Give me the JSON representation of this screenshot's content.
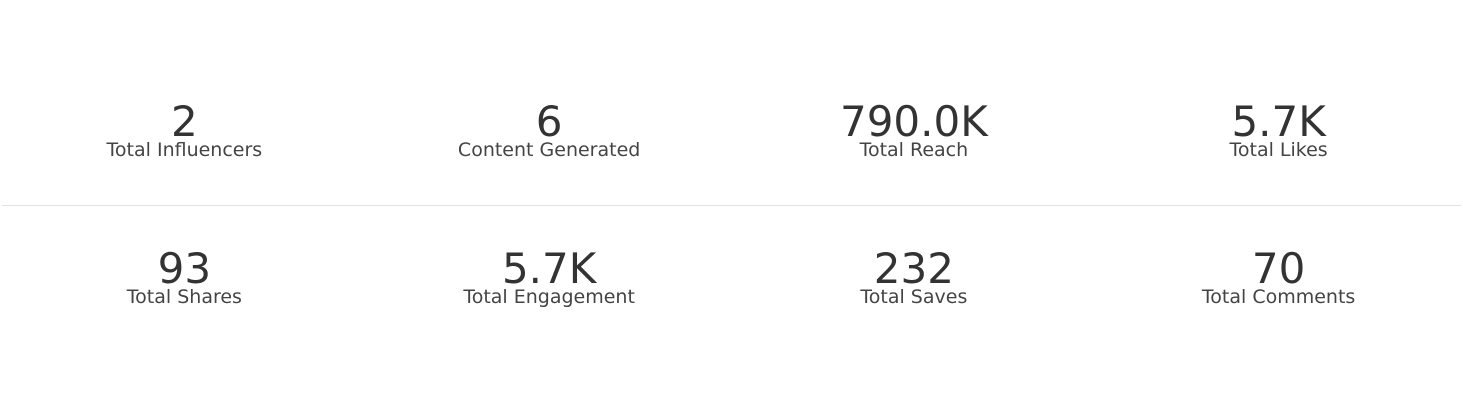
{
  "stats": {
    "rows": [
      [
        {
          "value": "2",
          "label": "Total Influencers"
        },
        {
          "value": "6",
          "label": "Content Generated"
        },
        {
          "value": "790.0K",
          "label": "Total Reach"
        },
        {
          "value": "5.7K",
          "label": "Total Likes"
        }
      ],
      [
        {
          "value": "93",
          "label": "Total Shares"
        },
        {
          "value": "5.7K",
          "label": "Total Engagement"
        },
        {
          "value": "232",
          "label": "Total Saves"
        },
        {
          "value": "70",
          "label": "Total Comments"
        }
      ]
    ]
  }
}
